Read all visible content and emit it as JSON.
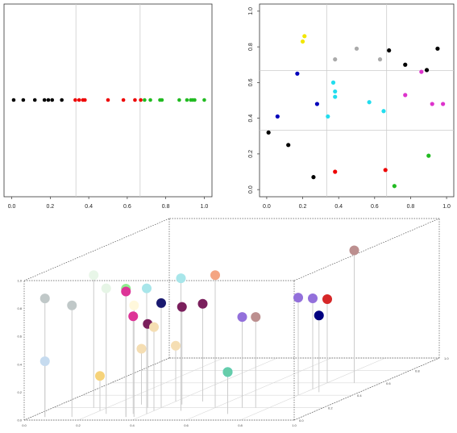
{
  "chart_data": [
    {
      "type": "scatter",
      "title": "",
      "xlabel": "",
      "ylabel": "",
      "xlim": [
        -0.04,
        1.04
      ],
      "xticks": [
        0.0,
        0.2,
        0.4,
        0.6,
        0.8,
        1.0
      ],
      "tick_labels": [
        "0.0",
        "0.2",
        "0.4",
        "0.6",
        "0.8",
        "1.0"
      ],
      "grid_x": [
        0.3333,
        0.6667
      ],
      "grid_color": "#cccccc",
      "groups": [
        {
          "color": "#000000",
          "x": [
            0.01,
            0.06,
            0.12,
            0.17,
            0.19,
            0.21,
            0.26
          ]
        },
        {
          "color": "#ee0000",
          "x": [
            0.33,
            0.35,
            0.37,
            0.38,
            0.5,
            0.58,
            0.64,
            0.67
          ]
        },
        {
          "color": "#22bb22",
          "x": [
            0.69,
            0.72,
            0.77,
            0.78,
            0.87,
            0.91,
            0.93,
            0.94,
            0.95,
            1.0
          ]
        }
      ]
    },
    {
      "type": "scatter",
      "title": "",
      "xlabel": "",
      "ylabel": "",
      "xlim": [
        -0.04,
        1.04
      ],
      "ylim": [
        -0.04,
        1.04
      ],
      "xticks": [
        0.0,
        0.2,
        0.4,
        0.6,
        0.8,
        1.0
      ],
      "yticks": [
        0.0,
        0.2,
        0.4,
        0.6,
        0.8,
        1.0
      ],
      "tick_labels": [
        "0.0",
        "0.2",
        "0.4",
        "0.6",
        "0.8",
        "1.0"
      ],
      "grid_x": [
        0.3333,
        0.6667
      ],
      "grid_y": [
        0.3333,
        0.6667
      ],
      "grid_color": "#cccccc",
      "points": [
        {
          "x": 0.21,
          "y": 0.86,
          "color": "#f2e600"
        },
        {
          "x": 0.2,
          "y": 0.83,
          "color": "#f2e600"
        },
        {
          "x": 0.38,
          "y": 0.73,
          "color": "#aaaaaa"
        },
        {
          "x": 0.5,
          "y": 0.79,
          "color": "#aaaaaa"
        },
        {
          "x": 0.63,
          "y": 0.73,
          "color": "#aaaaaa"
        },
        {
          "x": 0.68,
          "y": 0.78,
          "color": "#000000"
        },
        {
          "x": 0.77,
          "y": 0.7,
          "color": "#000000"
        },
        {
          "x": 0.95,
          "y": 0.79,
          "color": "#000000"
        },
        {
          "x": 0.89,
          "y": 0.67,
          "color": "#000000"
        },
        {
          "x": 0.86,
          "y": 0.66,
          "color": "#dd33cc"
        },
        {
          "x": 0.77,
          "y": 0.53,
          "color": "#dd33cc"
        },
        {
          "x": 0.92,
          "y": 0.48,
          "color": "#dd33cc"
        },
        {
          "x": 0.98,
          "y": 0.48,
          "color": "#dd33cc"
        },
        {
          "x": 0.17,
          "y": 0.65,
          "color": "#0000bb"
        },
        {
          "x": 0.28,
          "y": 0.48,
          "color": "#0000bb"
        },
        {
          "x": 0.06,
          "y": 0.41,
          "color": "#0000bb"
        },
        {
          "x": 0.37,
          "y": 0.6,
          "color": "#22ddee"
        },
        {
          "x": 0.38,
          "y": 0.55,
          "color": "#22ddee"
        },
        {
          "x": 0.38,
          "y": 0.52,
          "color": "#22ddee"
        },
        {
          "x": 0.57,
          "y": 0.49,
          "color": "#22ddee"
        },
        {
          "x": 0.65,
          "y": 0.44,
          "color": "#22ddee"
        },
        {
          "x": 0.34,
          "y": 0.41,
          "color": "#22ddee"
        },
        {
          "x": 0.01,
          "y": 0.32,
          "color": "#000000"
        },
        {
          "x": 0.12,
          "y": 0.25,
          "color": "#000000"
        },
        {
          "x": 0.26,
          "y": 0.07,
          "color": "#000000"
        },
        {
          "x": 0.38,
          "y": 0.1,
          "color": "#ee0000"
        },
        {
          "x": 0.66,
          "y": 0.11,
          "color": "#ee0000"
        },
        {
          "x": 0.9,
          "y": 0.19,
          "color": "#22bb22"
        },
        {
          "x": 0.71,
          "y": 0.02,
          "color": "#22bb22"
        }
      ]
    },
    {
      "type": "scatter3d",
      "title": "",
      "xlabel": "",
      "ylabel": "",
      "zlabel": "",
      "xlim": [
        0,
        1
      ],
      "ylim": [
        0,
        1
      ],
      "zlim": [
        0,
        1
      ],
      "xticks": [
        0.0,
        0.2,
        0.4,
        0.6,
        0.8,
        1.0
      ],
      "yticks": [
        0.0,
        0.2,
        0.4,
        0.6,
        0.8,
        1.0
      ],
      "zticks": [
        0.0,
        0.2,
        0.4,
        0.6,
        0.8,
        1.0
      ],
      "tick_labels": [
        "0.0",
        "0.2",
        "0.4",
        "0.6",
        "0.8",
        "1.0"
      ],
      "box_color": "#555555",
      "stem_color": "#cccccc",
      "points": [
        {
          "x": 0.6,
          "y": 0.2,
          "z": 0.95,
          "color": "#f4a582"
        },
        {
          "x": 0.5,
          "y": 0.15,
          "z": 0.95,
          "color": "#a8e6ea"
        },
        {
          "x": 0.4,
          "y": 0.1,
          "z": 0.9,
          "color": "#a8e6ea"
        },
        {
          "x": 0.25,
          "y": 0.1,
          "z": 0.9,
          "color": "#e6f5e6"
        },
        {
          "x": 0.35,
          "y": 0.05,
          "z": 0.92,
          "color": "#90ee90"
        },
        {
          "x": 0.15,
          "y": 0.2,
          "z": 0.95,
          "color": "#e8f6e8"
        },
        {
          "x": 0.35,
          "y": 0.05,
          "z": 0.9,
          "color": "#dd3497"
        },
        {
          "x": 0.38,
          "y": 0.05,
          "z": 0.8,
          "color": "#fff8dc"
        },
        {
          "x": 0.4,
          "y": 0.2,
          "z": 0.75,
          "color": "#191970"
        },
        {
          "x": 0.05,
          "y": 0.05,
          "z": 0.85,
          "color": "#c0c8c8"
        },
        {
          "x": 0.15,
          "y": 0.05,
          "z": 0.8,
          "color": "#c0c8c8"
        },
        {
          "x": 0.35,
          "y": 0.1,
          "z": 0.7,
          "color": "#dd3497"
        },
        {
          "x": 0.45,
          "y": 0.25,
          "z": 0.7,
          "color": "#7a1f5c"
        },
        {
          "x": 0.5,
          "y": 0.3,
          "z": 0.7,
          "color": "#7a1f5c"
        },
        {
          "x": 0.35,
          "y": 0.2,
          "z": 0.6,
          "color": "#7a1f5c"
        },
        {
          "x": 0.4,
          "y": 0.15,
          "z": 0.6,
          "color": "#f5deb3"
        },
        {
          "x": 0.7,
          "y": 0.2,
          "z": 0.65,
          "color": "#9370db"
        },
        {
          "x": 0.75,
          "y": 0.2,
          "z": 0.65,
          "color": "#bc8f8f"
        },
        {
          "x": 0.8,
          "y": 0.4,
          "z": 0.7,
          "color": "#9370db"
        },
        {
          "x": 0.9,
          "y": 0.6,
          "z": 0.95,
          "color": "#bc8f8f"
        },
        {
          "x": 0.8,
          "y": 0.5,
          "z": 0.65,
          "color": "#9370db"
        },
        {
          "x": 0.8,
          "y": 0.6,
          "z": 0.6,
          "color": "#d62728"
        },
        {
          "x": 0.85,
          "y": 0.45,
          "z": 0.55,
          "color": "#000080"
        },
        {
          "x": 0.7,
          "y": 0.1,
          "z": 0.3,
          "color": "#00bfff"
        },
        {
          "x": 0.7,
          "y": 0.1,
          "z": 0.3,
          "color": "#66cdaa"
        },
        {
          "x": 0.05,
          "y": 0.05,
          "z": 0.4,
          "color": "#c6dbef"
        },
        {
          "x": 0.3,
          "y": 0.25,
          "z": 0.4,
          "color": "#f5deb3"
        },
        {
          "x": 0.4,
          "y": 0.3,
          "z": 0.4,
          "color": "#f5deb3"
        },
        {
          "x": 0.2,
          "y": 0.15,
          "z": 0.25,
          "color": "#f6d37a"
        }
      ]
    }
  ]
}
